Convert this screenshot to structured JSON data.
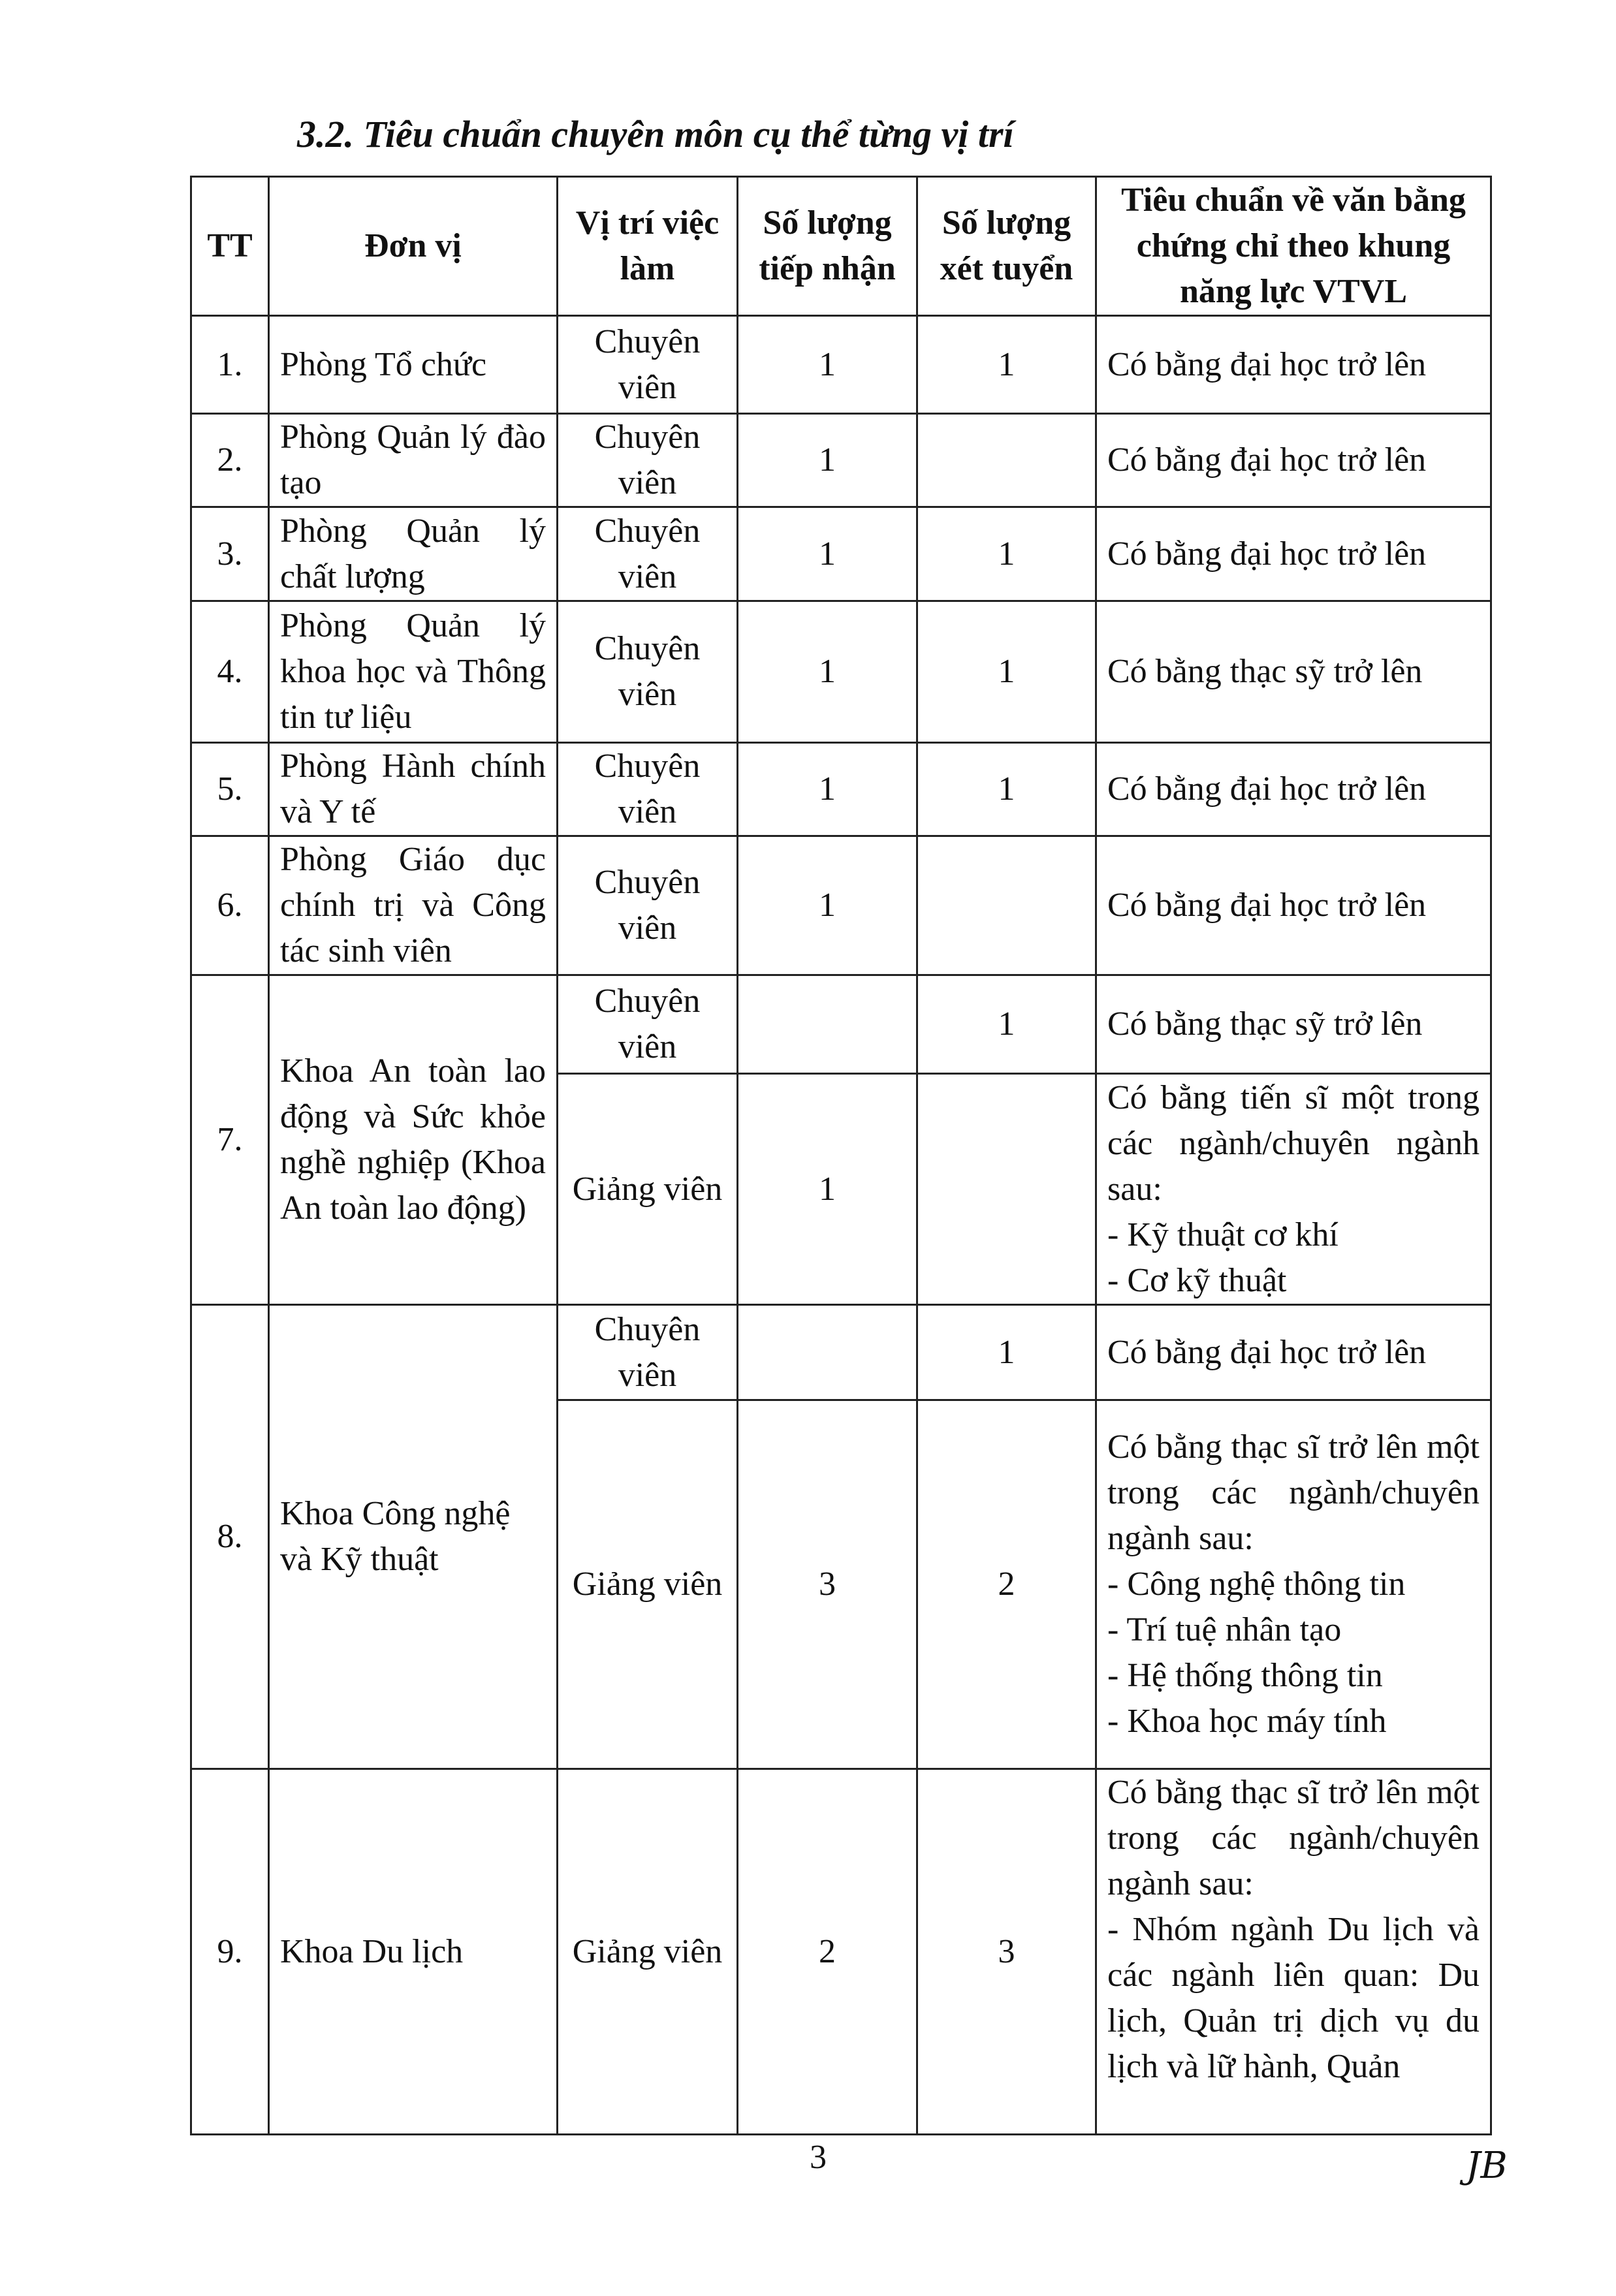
{
  "section_title": "3.2. Tiêu chuẩn chuyên môn cụ thể từng vị trí",
  "table": {
    "headers": [
      "TT",
      "Đơn vị",
      "Vị trí việc làm",
      "Số lượng tiếp nhận",
      "Số lượng xét tuyển",
      "Tiêu chuẩn về văn bằng chứng chỉ theo khung năng lực VTVL"
    ],
    "rows": [
      {
        "tt": "1.",
        "unit": "Phòng Tổ chức",
        "position": "Chuyên viên",
        "receive": "1",
        "recruit": "1",
        "standard": "Có bằng đại học trở lên"
      },
      {
        "tt": "2.",
        "unit": "Phòng Quản lý đào tạo",
        "position": "Chuyên viên",
        "receive": "1",
        "recruit": "",
        "standard": "Có bằng đại học trở lên"
      },
      {
        "tt": "3.",
        "unit": "Phòng Quản lý chất lượng",
        "position": "Chuyên viên",
        "receive": "1",
        "recruit": "1",
        "standard": "Có bằng đại học trở lên"
      },
      {
        "tt": "4.",
        "unit": "Phòng Quản lý khoa học và Thông tin tư liệu",
        "position": "Chuyên viên",
        "receive": "1",
        "recruit": "1",
        "standard": "Có bằng thạc sỹ trở lên"
      },
      {
        "tt": "5.",
        "unit": "Phòng Hành chính và Y tế",
        "position": "Chuyên viên",
        "receive": "1",
        "recruit": "1",
        "standard": "Có bằng đại học trở lên"
      },
      {
        "tt": "6.",
        "unit": "Phòng Giáo dục chính trị và Công tác sinh viên",
        "position": "Chuyên viên",
        "receive": "1",
        "recruit": "",
        "standard": "Có bằng đại học trở lên"
      },
      {
        "tt": "7.",
        "unit": "Khoa An toàn lao động và Sức khỏe nghề nghiệp (Khoa An toàn lao động)",
        "sub": [
          {
            "position": "Chuyên viên",
            "receive": "",
            "recruit": "1",
            "standard": "Có bằng thạc sỹ trở lên"
          },
          {
            "position": "Giảng viên",
            "receive": "1",
            "recruit": "",
            "standard": "Có bằng tiến sĩ một trong các ngành/chuyên ngành sau:",
            "items": [
              "- Kỹ thuật cơ khí",
              "- Cơ kỹ thuật"
            ]
          }
        ]
      },
      {
        "tt": "8.",
        "unit": "Khoa Công nghệ và Kỹ thuật",
        "sub": [
          {
            "position": "Chuyên viên",
            "receive": "",
            "recruit": "1",
            "standard": "Có bằng đại học trở lên"
          },
          {
            "position": "Giảng viên",
            "receive": "3",
            "recruit": "2",
            "standard": "Có bằng thạc sĩ trở lên một trong các ngành/chuyên ngành sau:",
            "items": [
              "- Công nghệ thông tin",
              "- Trí tuệ nhân tạo",
              "- Hệ thống thông tin",
              "- Khoa học máy tính"
            ]
          }
        ]
      },
      {
        "tt": "9.",
        "unit": "Khoa Du lịch",
        "position": "Giảng viên",
        "receive": "2",
        "recruit": "3",
        "standard": "Có bằng thạc sĩ trở lên một trong các ngành/chuyên ngành sau:",
        "items": [
          "- Nhóm ngành Du lịch và các ngành liên quan: Du lịch, Quản trị dịch vụ du lịch và lữ hành, Quản"
        ]
      }
    ]
  },
  "page_number": "3",
  "signature": "JB"
}
